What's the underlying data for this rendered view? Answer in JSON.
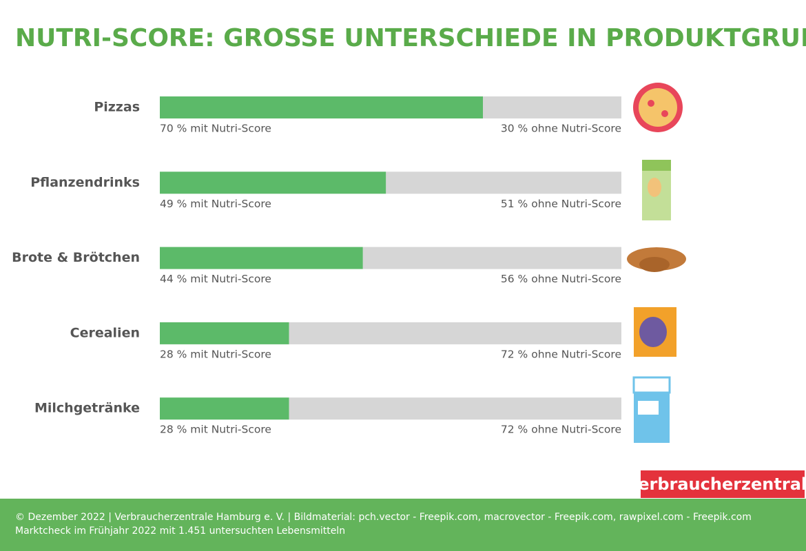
{
  "chart_data": {
    "type": "stacked-barh",
    "title": "NUTRI-SCORE: GROSSE UNTERSCHIEDE IN PRODUKTGRUPPEN",
    "categories": [
      "Pizzas",
      "Pflanzendrinks",
      "Brote & Brötchen",
      "Cerealien",
      "Milchgetränke"
    ],
    "series": [
      {
        "color": "#5cba69",
        "values": [
          70,
          49,
          44,
          28,
          28
        ],
        "value_labels": [
          "70 % mit Nutri-Score",
          "49 % mit Nutri-Score",
          "44 % mit Nutri-Score",
          "28 % mit Nutri-Score",
          "28 % mit Nutri-Score"
        ]
      },
      {
        "color": "#d6d6d6",
        "values": [
          30,
          51,
          56,
          72,
          72
        ],
        "value_labels": [
          "30 % ohne Nutri-Score",
          "51 % ohne Nutri-Score",
          "56 % ohne Nutri-Score",
          "72 % ohne Nutri-Score",
          "72 % ohne Nutri-Score"
        ]
      }
    ],
    "xlim": [
      0,
      100
    ]
  },
  "logo": "verbraucherzentrale",
  "footer": {
    "credits": "© Dezember 2022 | Verbraucherzentrale Hamburg e. V. | Bildmaterial: pch.vector - Freepik.com, macrovector - Freepik.com, rawpixel.com - Freepik.com",
    "note": "Marktcheck im Frühjahr 2022 mit 1.451 untersuchten Lebensmitteln"
  }
}
